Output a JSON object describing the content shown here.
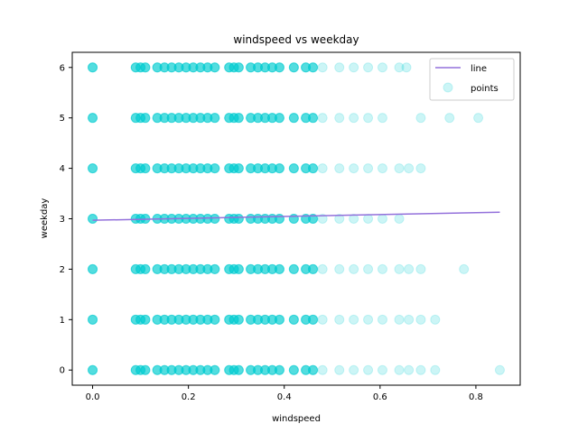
{
  "chart_data": {
    "type": "scatter",
    "title": "windspeed vs weekday",
    "xlabel": "windspeed",
    "ylabel": "weekday",
    "xlim": [
      -0.0425,
      0.8925
    ],
    "ylim": [
      -0.3,
      6.3
    ],
    "xticks": [
      0.0,
      0.2,
      0.4,
      0.6,
      0.8
    ],
    "xtick_labels": [
      "0.0",
      "0.2",
      "0.4",
      "0.6",
      "0.8"
    ],
    "yticks": [
      0,
      1,
      2,
      3,
      4,
      5,
      6
    ],
    "ytick_labels": [
      "0",
      "1",
      "2",
      "3",
      "4",
      "5",
      "6"
    ],
    "grid": false,
    "legend": {
      "position": "top-right",
      "entries": [
        {
          "label": "line",
          "kind": "line",
          "color": "#9370db"
        },
        {
          "label": "points",
          "kind": "marker",
          "color": "#00ced1"
        }
      ]
    },
    "series": [
      {
        "name": "points",
        "kind": "scatter",
        "color": "#00ced1",
        "dense_x": [
          0.0,
          0.09,
          0.1,
          0.11,
          0.135,
          0.15,
          0.165,
          0.18,
          0.195,
          0.21,
          0.225,
          0.24,
          0.255,
          0.285,
          0.295,
          0.305,
          0.33,
          0.345,
          0.36,
          0.375,
          0.39,
          0.42,
          0.445,
          0.46
        ],
        "dense_y": [
          0,
          1,
          2,
          3,
          4,
          5,
          6
        ],
        "points": [
          {
            "x": 0.48,
            "y": 0
          },
          {
            "x": 0.515,
            "y": 0
          },
          {
            "x": 0.545,
            "y": 0
          },
          {
            "x": 0.575,
            "y": 0
          },
          {
            "x": 0.605,
            "y": 0
          },
          {
            "x": 0.64,
            "y": 0
          },
          {
            "x": 0.66,
            "y": 0
          },
          {
            "x": 0.685,
            "y": 0
          },
          {
            "x": 0.715,
            "y": 0
          },
          {
            "x": 0.85,
            "y": 0
          },
          {
            "x": 0.48,
            "y": 1
          },
          {
            "x": 0.515,
            "y": 1
          },
          {
            "x": 0.545,
            "y": 1
          },
          {
            "x": 0.575,
            "y": 1
          },
          {
            "x": 0.605,
            "y": 1
          },
          {
            "x": 0.64,
            "y": 1
          },
          {
            "x": 0.66,
            "y": 1
          },
          {
            "x": 0.685,
            "y": 1
          },
          {
            "x": 0.715,
            "y": 1
          },
          {
            "x": 0.48,
            "y": 2
          },
          {
            "x": 0.515,
            "y": 2
          },
          {
            "x": 0.545,
            "y": 2
          },
          {
            "x": 0.575,
            "y": 2
          },
          {
            "x": 0.605,
            "y": 2
          },
          {
            "x": 0.64,
            "y": 2
          },
          {
            "x": 0.66,
            "y": 2
          },
          {
            "x": 0.685,
            "y": 2
          },
          {
            "x": 0.775,
            "y": 2
          },
          {
            "x": 0.48,
            "y": 3
          },
          {
            "x": 0.515,
            "y": 3
          },
          {
            "x": 0.545,
            "y": 3
          },
          {
            "x": 0.575,
            "y": 3
          },
          {
            "x": 0.605,
            "y": 3
          },
          {
            "x": 0.64,
            "y": 3
          },
          {
            "x": 0.48,
            "y": 4
          },
          {
            "x": 0.515,
            "y": 4
          },
          {
            "x": 0.545,
            "y": 4
          },
          {
            "x": 0.575,
            "y": 4
          },
          {
            "x": 0.605,
            "y": 4
          },
          {
            "x": 0.64,
            "y": 4
          },
          {
            "x": 0.66,
            "y": 4
          },
          {
            "x": 0.685,
            "y": 4
          },
          {
            "x": 0.48,
            "y": 5
          },
          {
            "x": 0.515,
            "y": 5
          },
          {
            "x": 0.545,
            "y": 5
          },
          {
            "x": 0.575,
            "y": 5
          },
          {
            "x": 0.605,
            "y": 5
          },
          {
            "x": 0.685,
            "y": 5
          },
          {
            "x": 0.745,
            "y": 5
          },
          {
            "x": 0.805,
            "y": 5
          },
          {
            "x": 0.48,
            "y": 6
          },
          {
            "x": 0.515,
            "y": 6
          },
          {
            "x": 0.545,
            "y": 6
          },
          {
            "x": 0.575,
            "y": 6
          },
          {
            "x": 0.605,
            "y": 6
          },
          {
            "x": 0.64,
            "y": 6
          },
          {
            "x": 0.655,
            "y": 6
          }
        ]
      },
      {
        "name": "line",
        "kind": "line",
        "color": "#9370db",
        "x": [
          0.0,
          0.85
        ],
        "y": [
          2.97,
          3.13
        ]
      }
    ]
  }
}
